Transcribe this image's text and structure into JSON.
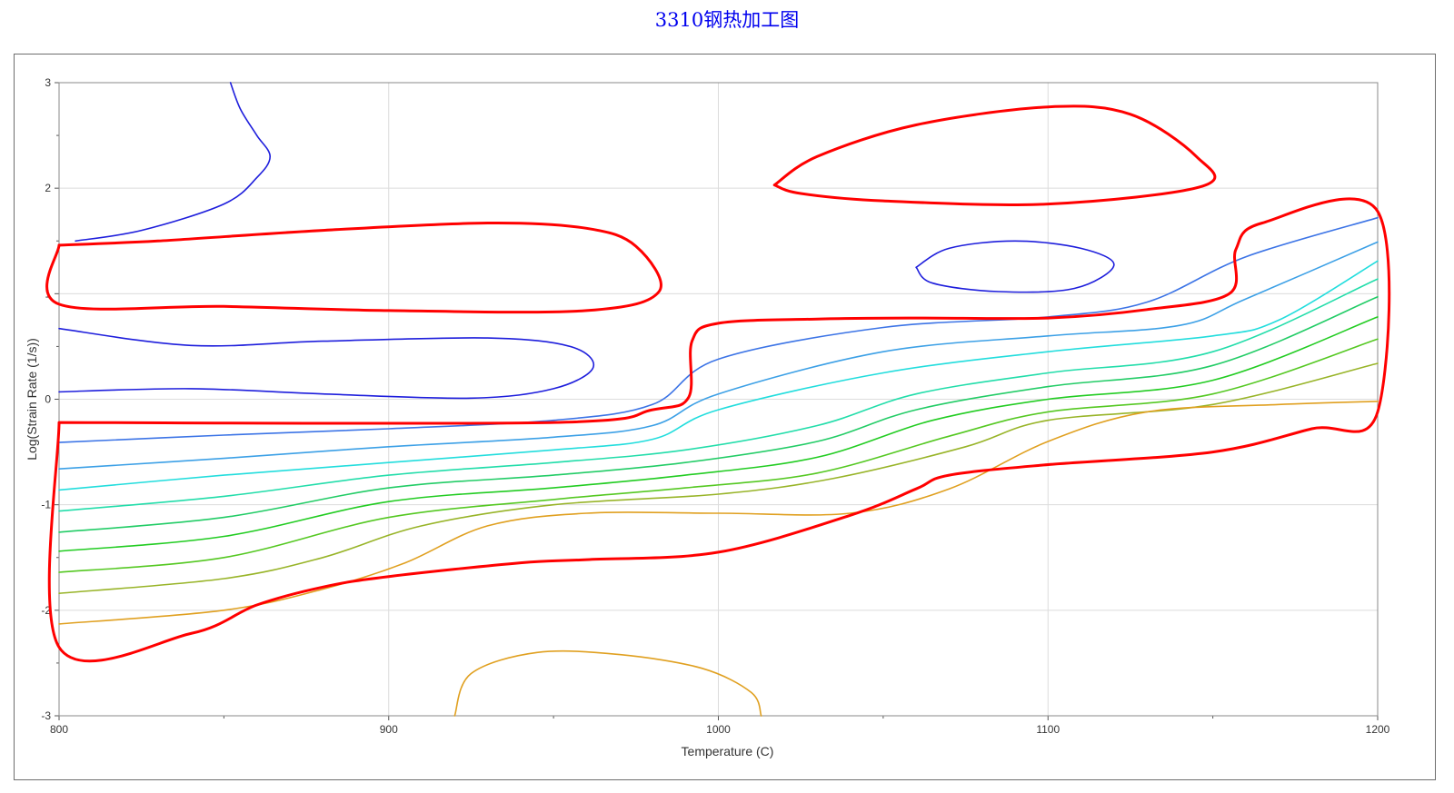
{
  "title": "3310钢热加工图",
  "chart_data": {
    "type": "contour",
    "title": "3310钢热加工图",
    "xlabel": "Temperature (C)",
    "ylabel": "Log(Strain Rate (1/s))",
    "xlim": [
      800,
      1200
    ],
    "ylim": [
      -3,
      3
    ],
    "xticks": [
      "800",
      "900",
      "1000",
      "1100",
      "1200"
    ],
    "yticks": [
      "3",
      "2",
      "1",
      "0",
      "-1",
      "-2",
      "-3"
    ],
    "grid": true,
    "colors": {
      "instability": "#ff0000",
      "orange": "#e0a020",
      "olive": "#98b428",
      "green": "#22cc22",
      "cyan": "#22dddd",
      "sky": "#3c96e6",
      "blue": "#1e1edc"
    },
    "series": [
      {
        "color": "#1e1edc",
        "points": [
          [
            805,
            1.5
          ],
          [
            825,
            1.6
          ],
          [
            850,
            1.85
          ],
          [
            860,
            2.1
          ],
          [
            864,
            2.3
          ],
          [
            860,
            2.5
          ],
          [
            855,
            2.75
          ],
          [
            852,
            3
          ]
        ]
      },
      {
        "color": "#1e1edc",
        "points": [
          [
            800,
            0.67
          ],
          [
            840,
            0.51
          ],
          [
            880,
            0.55
          ],
          [
            930,
            0.58
          ],
          [
            955,
            0.5
          ],
          [
            962,
            0.3
          ],
          [
            950,
            0.1
          ],
          [
            925,
            0.01
          ],
          [
            880,
            0.05
          ],
          [
            840,
            0.1
          ],
          [
            800,
            0.07
          ]
        ]
      },
      {
        "color": "#1e1edc",
        "points": [
          [
            1060,
            1.25
          ],
          [
            1070,
            1.43
          ],
          [
            1090,
            1.5
          ],
          [
            1110,
            1.43
          ],
          [
            1120,
            1.27
          ],
          [
            1108,
            1.05
          ],
          [
            1085,
            1.02
          ],
          [
            1065,
            1.1
          ],
          [
            1060,
            1.25
          ]
        ]
      },
      {
        "color": "#3c74e6",
        "points": [
          [
            800,
            -0.41
          ],
          [
            850,
            -0.34
          ],
          [
            900,
            -0.28
          ],
          [
            950,
            -0.2
          ],
          [
            980,
            -0.05
          ],
          [
            1000,
            0.38
          ],
          [
            1050,
            0.68
          ],
          [
            1100,
            0.78
          ],
          [
            1130,
            0.92
          ],
          [
            1160,
            1.35
          ],
          [
            1200,
            1.72
          ]
        ]
      },
      {
        "color": "#3ca0e6",
        "points": [
          [
            800,
            -0.66
          ],
          [
            850,
            -0.56
          ],
          [
            900,
            -0.45
          ],
          [
            950,
            -0.36
          ],
          [
            980,
            -0.25
          ],
          [
            1000,
            0.05
          ],
          [
            1050,
            0.45
          ],
          [
            1100,
            0.6
          ],
          [
            1140,
            0.7
          ],
          [
            1160,
            0.95
          ],
          [
            1200,
            1.49
          ]
        ]
      },
      {
        "color": "#22dddd",
        "points": [
          [
            800,
            -0.86
          ],
          [
            850,
            -0.72
          ],
          [
            900,
            -0.6
          ],
          [
            950,
            -0.48
          ],
          [
            980,
            -0.38
          ],
          [
            1000,
            -0.1
          ],
          [
            1050,
            0.25
          ],
          [
            1100,
            0.45
          ],
          [
            1150,
            0.6
          ],
          [
            1170,
            0.75
          ],
          [
            1200,
            1.31
          ]
        ]
      },
      {
        "color": "#22ddaa",
        "points": [
          [
            800,
            -1.06
          ],
          [
            850,
            -0.92
          ],
          [
            900,
            -0.72
          ],
          [
            950,
            -0.6
          ],
          [
            990,
            -0.48
          ],
          [
            1030,
            -0.25
          ],
          [
            1060,
            0.05
          ],
          [
            1100,
            0.25
          ],
          [
            1150,
            0.45
          ],
          [
            1200,
            1.14
          ]
        ]
      },
      {
        "color": "#22cc66",
        "points": [
          [
            800,
            -1.26
          ],
          [
            850,
            -1.12
          ],
          [
            900,
            -0.84
          ],
          [
            950,
            -0.72
          ],
          [
            990,
            -0.6
          ],
          [
            1030,
            -0.4
          ],
          [
            1060,
            -0.1
          ],
          [
            1100,
            0.12
          ],
          [
            1150,
            0.32
          ],
          [
            1200,
            0.97
          ]
        ]
      },
      {
        "color": "#22cc22",
        "points": [
          [
            800,
            -1.44
          ],
          [
            850,
            -1.3
          ],
          [
            900,
            -0.97
          ],
          [
            950,
            -0.84
          ],
          [
            990,
            -0.72
          ],
          [
            1030,
            -0.55
          ],
          [
            1065,
            -0.2
          ],
          [
            1100,
            0.0
          ],
          [
            1150,
            0.18
          ],
          [
            1200,
            0.78
          ]
        ]
      },
      {
        "color": "#55c822",
        "points": [
          [
            800,
            -1.64
          ],
          [
            850,
            -1.5
          ],
          [
            900,
            -1.12
          ],
          [
            950,
            -0.95
          ],
          [
            990,
            -0.84
          ],
          [
            1030,
            -0.7
          ],
          [
            1070,
            -0.35
          ],
          [
            1100,
            -0.12
          ],
          [
            1150,
            0.05
          ],
          [
            1200,
            0.57
          ]
        ]
      },
      {
        "color": "#98b428",
        "points": [
          [
            800,
            -1.84
          ],
          [
            850,
            -1.7
          ],
          [
            880,
            -1.5
          ],
          [
            910,
            -1.2
          ],
          [
            950,
            -1.0
          ],
          [
            1000,
            -0.9
          ],
          [
            1035,
            -0.75
          ],
          [
            1075,
            -0.45
          ],
          [
            1100,
            -0.2
          ],
          [
            1150,
            -0.05
          ],
          [
            1200,
            0.34
          ]
        ]
      },
      {
        "color": "#e0a020",
        "points": [
          [
            800,
            -2.13
          ],
          [
            850,
            -2.0
          ],
          [
            880,
            -1.8
          ],
          [
            905,
            -1.55
          ],
          [
            930,
            -1.2
          ],
          [
            960,
            -1.08
          ],
          [
            1000,
            -1.08
          ],
          [
            1040,
            -1.08
          ],
          [
            1070,
            -0.85
          ],
          [
            1100,
            -0.4
          ],
          [
            1130,
            -0.12
          ],
          [
            1170,
            -0.05
          ],
          [
            1200,
            -0.02
          ]
        ]
      },
      {
        "color": "#e0a020",
        "points": [
          [
            920,
            -3
          ],
          [
            925,
            -2.6
          ],
          [
            945,
            -2.4
          ],
          [
            970,
            -2.42
          ],
          [
            995,
            -2.55
          ],
          [
            1010,
            -2.78
          ],
          [
            1013,
            -3
          ]
        ]
      },
      {
        "color": "#ff0000",
        "width": 3,
        "points": [
          [
            1017,
            2.03
          ],
          [
            1030,
            2.3
          ],
          [
            1060,
            2.6
          ],
          [
            1100,
            2.77
          ],
          [
            1125,
            2.7
          ],
          [
            1145,
            2.3
          ],
          [
            1147,
            2.02
          ],
          [
            1100,
            1.85
          ],
          [
            1050,
            1.88
          ],
          [
            1025,
            1.95
          ],
          [
            1017,
            2.03
          ]
        ]
      },
      {
        "color": "#ff0000",
        "width": 3,
        "points": [
          [
            800,
            1.46
          ],
          [
            830,
            1.5
          ],
          [
            880,
            1.6
          ],
          [
            930,
            1.67
          ],
          [
            960,
            1.62
          ],
          [
            975,
            1.45
          ],
          [
            982,
            1.02
          ],
          [
            960,
            0.84
          ],
          [
            900,
            0.84
          ],
          [
            850,
            0.88
          ],
          [
            800,
            0.9
          ],
          [
            800,
            1.46
          ]
        ]
      },
      {
        "color": "#ff0000",
        "width": 3,
        "points": [
          [
            800,
            -0.22
          ],
          [
            950,
            -0.22
          ],
          [
            980,
            -0.1
          ],
          [
            991,
            0.02
          ],
          [
            992,
            0.55
          ],
          [
            1000,
            0.72
          ],
          [
            1030,
            0.76
          ],
          [
            1060,
            0.77
          ],
          [
            1100,
            0.77
          ],
          [
            1130,
            0.85
          ],
          [
            1155,
            1.0
          ],
          [
            1157,
            1.42
          ],
          [
            1165,
            1.67
          ],
          [
            1200,
            1.78
          ],
          [
            1200,
            -0.12
          ],
          [
            1180,
            -0.28
          ],
          [
            1150,
            -0.5
          ],
          [
            1100,
            -0.62
          ],
          [
            1070,
            -0.72
          ],
          [
            1060,
            -0.85
          ],
          [
            1040,
            -1.1
          ],
          [
            1000,
            -1.45
          ],
          [
            960,
            -1.52
          ],
          [
            940,
            -1.55
          ],
          [
            900,
            -1.68
          ],
          [
            880,
            -1.78
          ],
          [
            860,
            -1.95
          ],
          [
            840,
            -2.22
          ],
          [
            800,
            -2.35
          ],
          [
            800,
            -0.22
          ]
        ]
      }
    ]
  }
}
